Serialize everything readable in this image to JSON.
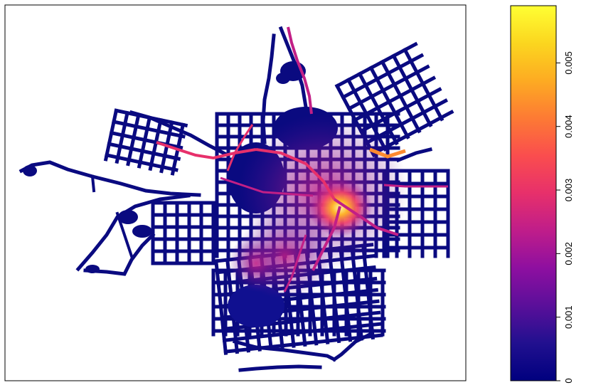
{
  "chart_data": {
    "type": "heatmap",
    "title": "",
    "xlabel": "",
    "ylabel": "",
    "colorbar": {
      "range": [
        0,
        0.0059
      ],
      "ticks": [
        {
          "value": 0,
          "label": "0"
        },
        {
          "value": 0.001,
          "label": "0.001"
        },
        {
          "value": 0.002,
          "label": "0.002"
        },
        {
          "value": 0.003,
          "label": "0.003"
        },
        {
          "value": 0.004,
          "label": "0.004"
        },
        {
          "value": 0.005,
          "label": "0.005"
        }
      ],
      "colors": [
        "#00007f",
        "#21108f",
        "#5a0f9a",
        "#8e0fa0",
        "#bf1d8a",
        "#e7306b",
        "#fa4d4e",
        "#fd7a34",
        "#fdab22",
        "#fbd61f",
        "#ffff33"
      ],
      "tick_label_orientation": "rotated",
      "placement": "right"
    },
    "axes_visible": false,
    "grid": false,
    "summary": {
      "hotspot_value_approx": 0.0058,
      "background_road_value_approx": 0.0004
    }
  }
}
